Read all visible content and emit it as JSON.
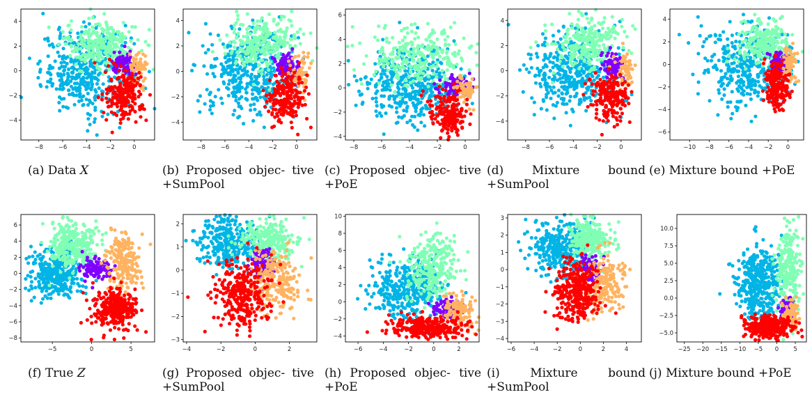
{
  "chart_data": [
    {
      "type": "scatter",
      "id": "a",
      "caption": "(a) Data",
      "caption_var": "X",
      "xlim": [
        -9.5,
        1.7
      ],
      "ylim": [
        -5.6,
        5.0
      ],
      "xticks": [
        -8,
        -6,
        -4,
        -2,
        0
      ],
      "yticks": [
        -4,
        -2,
        0,
        2,
        4
      ],
      "clusters": [
        {
          "color": "#00b4e6",
          "cx": -4.0,
          "cy": 0.0,
          "sx": 1.9,
          "sy": 1.7,
          "n": 420
        },
        {
          "color": "#80ffb4",
          "cx": -2.8,
          "cy": 2.2,
          "sx": 1.5,
          "sy": 1.0,
          "n": 260
        },
        {
          "color": "#8000ff",
          "cx": -0.8,
          "cy": 0.4,
          "sx": 0.5,
          "sy": 0.5,
          "n": 90
        },
        {
          "color": "#ffb360",
          "cx": 0.3,
          "cy": 0.0,
          "sx": 0.4,
          "sy": 0.8,
          "n": 60
        },
        {
          "color": "#ff0000",
          "cx": -0.8,
          "cy": -2.0,
          "sx": 0.8,
          "sy": 1.0,
          "n": 200
        }
      ]
    },
    {
      "type": "scatter",
      "id": "b",
      "caption": "(b) Proposed objec- tive +SumPool",
      "caption_var": "",
      "xlim": [
        -9.5,
        1.7
      ],
      "ylim": [
        -5.4,
        4.9
      ],
      "xticks": [
        -8,
        -6,
        -4,
        -2,
        0
      ],
      "yticks": [
        -4,
        -2,
        0,
        2,
        4
      ],
      "clusters": [
        {
          "color": "#00b4e6",
          "cx": -4.0,
          "cy": 0.0,
          "sx": 1.9,
          "sy": 1.7,
          "n": 420
        },
        {
          "color": "#80ffb4",
          "cx": -2.8,
          "cy": 2.2,
          "sx": 1.5,
          "sy": 1.0,
          "n": 260
        },
        {
          "color": "#8000ff",
          "cx": -0.8,
          "cy": 0.4,
          "sx": 0.5,
          "sy": 0.5,
          "n": 90
        },
        {
          "color": "#ffb360",
          "cx": 0.3,
          "cy": 0.0,
          "sx": 0.4,
          "sy": 0.8,
          "n": 60
        },
        {
          "color": "#ff0000",
          "cx": -0.8,
          "cy": -2.0,
          "sx": 0.8,
          "sy": 1.0,
          "n": 200
        }
      ]
    },
    {
      "type": "scatter",
      "id": "c",
      "caption": "(c) Proposed objec- tive +PoE",
      "caption_var": "",
      "xlim": [
        -8.6,
        1.0
      ],
      "ylim": [
        -4.3,
        6.5
      ],
      "xticks": [
        -8,
        -6,
        -4,
        -2,
        0
      ],
      "yticks": [
        -4,
        -2,
        0,
        2,
        4,
        6
      ],
      "clusters": [
        {
          "color": "#00b4e6",
          "cx": -3.8,
          "cy": 0.2,
          "sx": 1.7,
          "sy": 1.5,
          "n": 400
        },
        {
          "color": "#80ffb4",
          "cx": -3.5,
          "cy": 2.6,
          "sx": 1.8,
          "sy": 1.2,
          "n": 280
        },
        {
          "color": "#8000ff",
          "cx": -0.8,
          "cy": 0.1,
          "sx": 0.5,
          "sy": 0.4,
          "n": 90
        },
        {
          "color": "#ffb360",
          "cx": 0.1,
          "cy": -0.2,
          "sx": 0.4,
          "sy": 0.6,
          "n": 60
        },
        {
          "color": "#ff0000",
          "cx": -1.2,
          "cy": -2.2,
          "sx": 0.7,
          "sy": 0.9,
          "n": 200
        }
      ]
    },
    {
      "type": "scatter",
      "id": "d",
      "caption": "(d) Mixture bound +SumPool",
      "caption_var": "",
      "xlim": [
        -9.5,
        1.7
      ],
      "ylim": [
        -5.5,
        4.9
      ],
      "xticks": [
        -8,
        -6,
        -4,
        -2,
        0
      ],
      "yticks": [
        -4,
        -2,
        0,
        2,
        4
      ],
      "clusters": [
        {
          "color": "#00b4e6",
          "cx": -4.0,
          "cy": 0.0,
          "sx": 1.9,
          "sy": 1.7,
          "n": 420
        },
        {
          "color": "#80ffb4",
          "cx": -2.8,
          "cy": 2.2,
          "sx": 1.5,
          "sy": 1.0,
          "n": 260
        },
        {
          "color": "#8000ff",
          "cx": -0.8,
          "cy": 0.4,
          "sx": 0.5,
          "sy": 0.5,
          "n": 90
        },
        {
          "color": "#ffb360",
          "cx": 0.3,
          "cy": 0.0,
          "sx": 0.4,
          "sy": 0.8,
          "n": 60
        },
        {
          "color": "#ff0000",
          "cx": -0.9,
          "cy": -2.0,
          "sx": 0.8,
          "sy": 1.0,
          "n": 200
        }
      ]
    },
    {
      "type": "scatter",
      "id": "e",
      "caption": "(e) Mixture bound +PoE",
      "caption_var": "",
      "xlim": [
        -12,
        1.6
      ],
      "ylim": [
        -6.7,
        4.9
      ],
      "xticks": [
        -10,
        -8,
        -6,
        -4,
        -2,
        0
      ],
      "yticks": [
        -6,
        -4,
        -2,
        0,
        2,
        4
      ],
      "clusters": [
        {
          "color": "#00b4e6",
          "cx": -4.2,
          "cy": 0.0,
          "sx": 2.2,
          "sy": 1.8,
          "n": 380
        },
        {
          "color": "#80ffb4",
          "cx": -2.5,
          "cy": 2.0,
          "sx": 1.3,
          "sy": 1.0,
          "n": 240
        },
        {
          "color": "#8000ff",
          "cx": -0.8,
          "cy": 0.3,
          "sx": 0.5,
          "sy": 0.5,
          "n": 90
        },
        {
          "color": "#ffb360",
          "cx": 0.2,
          "cy": 0.0,
          "sx": 0.4,
          "sy": 0.8,
          "n": 60
        },
        {
          "color": "#ff0000",
          "cx": -1.2,
          "cy": -1.9,
          "sx": 0.6,
          "sy": 1.0,
          "n": 200
        }
      ]
    },
    {
      "type": "scatter",
      "id": "f",
      "caption": "(f) True",
      "caption_var": "Z",
      "xlim": [
        -9.0,
        8.0
      ],
      "ylim": [
        -8.5,
        7.3
      ],
      "xticks": [
        -5,
        0,
        5
      ],
      "yticks": [
        -8,
        -6,
        -4,
        -2,
        0,
        2,
        4,
        6
      ],
      "clusters": [
        {
          "color": "#00b4e6",
          "cx": -4.5,
          "cy": 0.0,
          "sx": 1.6,
          "sy": 1.6,
          "n": 380
        },
        {
          "color": "#80ffb4",
          "cx": -2.5,
          "cy": 3.5,
          "sx": 1.6,
          "sy": 1.4,
          "n": 300
        },
        {
          "color": "#8000ff",
          "cx": 0.5,
          "cy": 0.5,
          "sx": 1.0,
          "sy": 0.7,
          "n": 100
        },
        {
          "color": "#ffb360",
          "cx": 4.0,
          "cy": 1.5,
          "sx": 1.1,
          "sy": 1.8,
          "n": 200
        },
        {
          "color": "#ff0000",
          "cx": 3.0,
          "cy": -4.5,
          "sx": 1.4,
          "sy": 1.2,
          "n": 320
        }
      ]
    },
    {
      "type": "scatter",
      "id": "g",
      "caption": "(g) Proposed objec- tive +SumPool",
      "caption_var": "",
      "xlim": [
        -4.2,
        3.6
      ],
      "ylim": [
        -3.1,
        2.4
      ],
      "xticks": [
        -4,
        -2,
        0,
        2
      ],
      "yticks": [
        -3,
        -2,
        -1,
        0,
        1,
        2
      ],
      "clusters": [
        {
          "color": "#00b4e6",
          "cx": -1.5,
          "cy": 1.2,
          "sx": 0.9,
          "sy": 0.6,
          "n": 320
        },
        {
          "color": "#80ffb4",
          "cx": 0.8,
          "cy": 1.3,
          "sx": 0.8,
          "sy": 0.5,
          "n": 280
        },
        {
          "color": "#8000ff",
          "cx": 0.4,
          "cy": 0.2,
          "sx": 0.4,
          "sy": 0.35,
          "n": 90
        },
        {
          "color": "#ffb360",
          "cx": 1.2,
          "cy": -0.5,
          "sx": 0.7,
          "sy": 0.7,
          "n": 220
        },
        {
          "color": "#ff0000",
          "cx": -0.8,
          "cy": -1.0,
          "sx": 0.8,
          "sy": 0.7,
          "n": 320
        }
      ]
    },
    {
      "type": "scatter",
      "id": "h",
      "caption": "(h) Proposed objec- tive +PoE",
      "caption_var": "",
      "xlim": [
        -7.0,
        3.6
      ],
      "ylim": [
        -4.7,
        10.2
      ],
      "xticks": [
        -6,
        -4,
        -2,
        0,
        2
      ],
      "yticks": [
        -4,
        -2,
        0,
        2,
        4,
        6,
        8,
        10
      ],
      "clusters": [
        {
          "color": "#00b4e6",
          "cx": -2.0,
          "cy": 1.5,
          "sx": 1.5,
          "sy": 1.8,
          "n": 380
        },
        {
          "color": "#80ffb4",
          "cx": -0.2,
          "cy": 4.0,
          "sx": 1.0,
          "sy": 2.0,
          "n": 260
        },
        {
          "color": "#8000ff",
          "cx": 1.2,
          "cy": -0.8,
          "sx": 0.6,
          "sy": 0.6,
          "n": 90
        },
        {
          "color": "#ffb360",
          "cx": 2.0,
          "cy": -1.0,
          "sx": 0.6,
          "sy": 0.9,
          "n": 120
        },
        {
          "color": "#ff0000",
          "cx": -0.5,
          "cy": -3.0,
          "sx": 1.5,
          "sy": 0.6,
          "n": 300
        }
      ]
    },
    {
      "type": "scatter",
      "id": "i",
      "caption": "(i) Mixture bound +SumPool",
      "caption_var": "",
      "xlim": [
        -6.3,
        5.3
      ],
      "ylim": [
        -4.2,
        3.2
      ],
      "xticks": [
        -6,
        -4,
        -2,
        0,
        2,
        4
      ],
      "yticks": [
        -4,
        -3,
        -2,
        -1,
        0,
        1,
        2,
        3
      ],
      "clusters": [
        {
          "color": "#00b4e6",
          "cx": -1.6,
          "cy": 1.3,
          "sx": 1.3,
          "sy": 0.8,
          "n": 330
        },
        {
          "color": "#80ffb4",
          "cx": 0.8,
          "cy": 1.8,
          "sx": 0.9,
          "sy": 0.6,
          "n": 260
        },
        {
          "color": "#8000ff",
          "cx": 0.9,
          "cy": 0.0,
          "sx": 0.5,
          "sy": 0.4,
          "n": 90
        },
        {
          "color": "#ffb360",
          "cx": 2.0,
          "cy": -0.8,
          "sx": 0.9,
          "sy": 0.8,
          "n": 200
        },
        {
          "color": "#ff0000",
          "cx": -0.3,
          "cy": -1.3,
          "sx": 1.0,
          "sy": 0.9,
          "n": 320
        }
      ]
    },
    {
      "type": "scatter",
      "id": "j",
      "caption": "(j) Mixture bound +PoE",
      "caption_var": "",
      "xlim": [
        -27,
        8
      ],
      "ylim": [
        -6.3,
        12.0
      ],
      "xticks": [
        -25,
        -20,
        -15,
        -10,
        -5,
        0,
        5
      ],
      "xtick_labels": [
        "−25",
        "−20",
        "−15",
        "−10",
        "−5",
        "0",
        "5"
      ],
      "yticks": [
        -5.0,
        -2.5,
        0.0,
        2.5,
        5.0,
        7.5,
        10.0
      ],
      "ytick_labels": [
        "−5.0",
        "−2.5",
        "0.0",
        "2.5",
        "5.0",
        "7.5",
        "10.0"
      ],
      "clusters": [
        {
          "color": "#00b4e6",
          "cx": -4.5,
          "cy": 2.0,
          "sx": 3.0,
          "sy": 2.6,
          "n": 400
        },
        {
          "color": "#80ffb4",
          "cx": 3.0,
          "cy": 4.0,
          "sx": 1.6,
          "sy": 3.2,
          "n": 260
        },
        {
          "color": "#8000ff",
          "cx": 3.0,
          "cy": -1.8,
          "sx": 1.0,
          "sy": 0.8,
          "n": 90
        },
        {
          "color": "#ffb360",
          "cx": 4.0,
          "cy": -2.0,
          "sx": 1.0,
          "sy": 1.0,
          "n": 80
        },
        {
          "color": "#ff0000",
          "cx": -2.5,
          "cy": -4.2,
          "sx": 3.0,
          "sy": 0.8,
          "n": 320
        }
      ]
    }
  ]
}
